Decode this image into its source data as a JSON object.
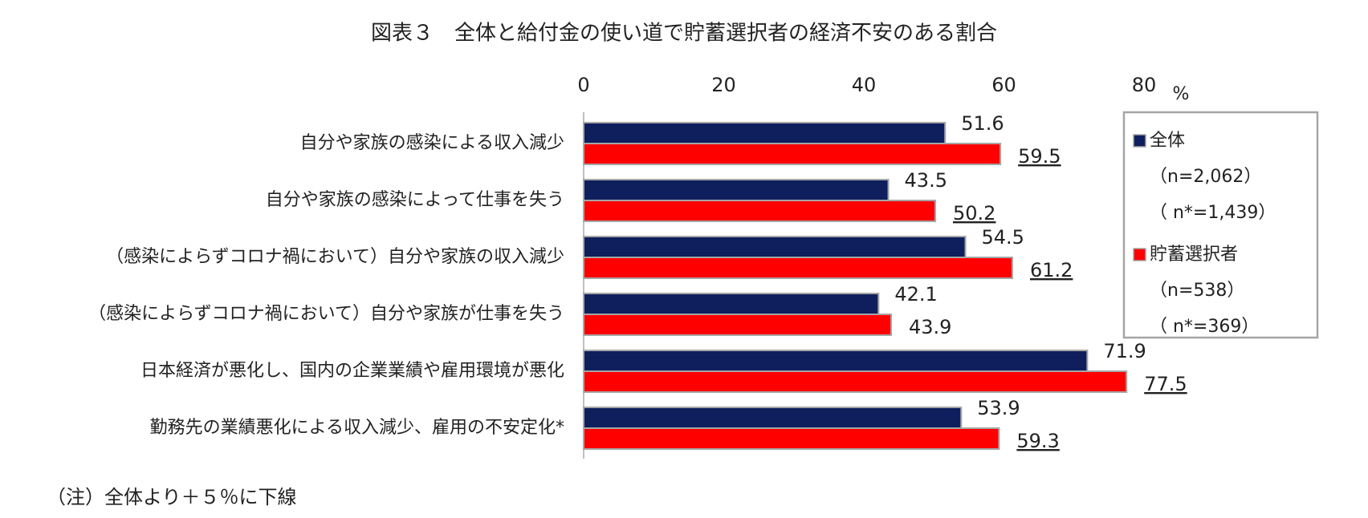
{
  "chart_data": {
    "type": "hbar",
    "title": "図表３　全体と給付金の使い道で貯蓄選択者の経済不安のある割合",
    "categories": [
      "自分や家族の感染による収入減少",
      "自分や家族の感染によって仕事を失う",
      "（感染によらずコロナ禍において）自分や家族の収入減少",
      "（感染によらずコロナ禍において）自分や家族が仕事を失う",
      "日本経済が悪化し、国内の企業業績や雇用環境が悪化",
      "勤務先の業績悪化による収入減少、雇用の不安定化*"
    ],
    "series": [
      {
        "name": "全体",
        "legend_notes": [
          "（n=2,062）",
          "（ n*=1,439）"
        ],
        "color": "#0f1f5e",
        "values": [
          51.6,
          43.5,
          54.5,
          42.1,
          71.9,
          53.9
        ]
      },
      {
        "name": "貯蓄選択者",
        "legend_notes": [
          "（n=538）",
          "（ n*=369）"
        ],
        "color": "#ff0000",
        "values": [
          59.5,
          50.2,
          61.2,
          43.9,
          77.5,
          59.3
        ],
        "underline": [
          true,
          true,
          true,
          false,
          true,
          true
        ]
      }
    ],
    "xlim": [
      0,
      80
    ],
    "xticks": [
      0,
      20,
      40,
      60,
      80
    ],
    "x_unit": "%",
    "axis_position": "top",
    "legend": "right",
    "note": "（注）全体より＋５％に下線"
  }
}
